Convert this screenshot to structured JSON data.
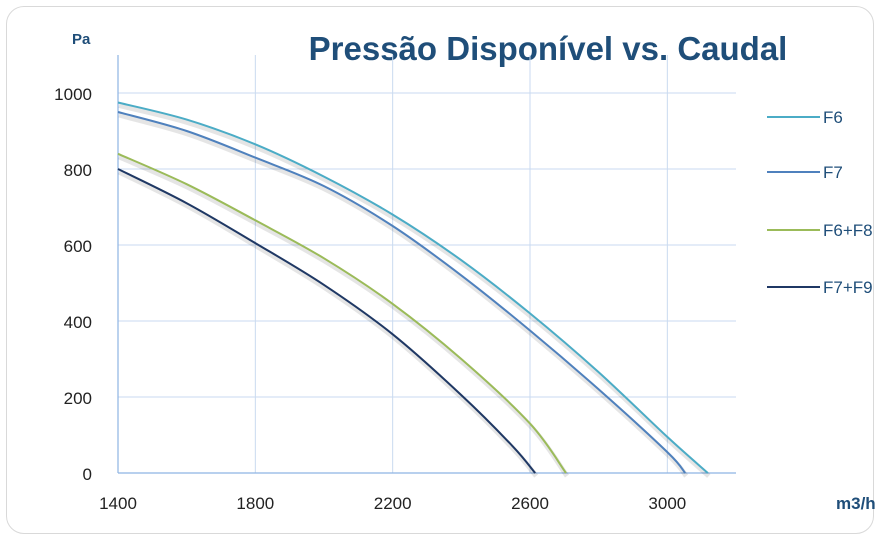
{
  "chart_data": {
    "type": "line",
    "title": "Pressão Disponível vs. Caudal",
    "ylabel": "Pa",
    "xlabel": "m3/h",
    "xlim": [
      1400,
      3200
    ],
    "ylim": [
      0,
      1100
    ],
    "x_ticks": [
      "1400",
      "1800",
      "2200",
      "2600",
      "3000"
    ],
    "y_ticks": [
      "0",
      "200",
      "400",
      "600",
      "800",
      "1000"
    ],
    "grid": true,
    "legend_position": "right",
    "series": [
      {
        "name": "F6",
        "color": "#4bacc6",
        "points": [
          [
            1400,
            975
          ],
          [
            1600,
            930
          ],
          [
            1800,
            865
          ],
          [
            2000,
            780
          ],
          [
            2200,
            680
          ],
          [
            2400,
            560
          ],
          [
            2600,
            420
          ],
          [
            2800,
            265
          ],
          [
            3000,
            95
          ],
          [
            3118,
            0
          ]
        ]
      },
      {
        "name": "F7",
        "color": "#4f81bd",
        "points": [
          [
            1400,
            950
          ],
          [
            1600,
            900
          ],
          [
            1800,
            830
          ],
          [
            2000,
            755
          ],
          [
            2200,
            650
          ],
          [
            2400,
            520
          ],
          [
            2600,
            375
          ],
          [
            2800,
            220
          ],
          [
            3000,
            55
          ],
          [
            3052,
            0
          ]
        ]
      },
      {
        "name": "F6+F8",
        "color": "#9bbb59",
        "points": [
          [
            1400,
            840
          ],
          [
            1600,
            760
          ],
          [
            1800,
            665
          ],
          [
            2000,
            565
          ],
          [
            2200,
            445
          ],
          [
            2400,
            300
          ],
          [
            2600,
            130
          ],
          [
            2705,
            0
          ]
        ]
      },
      {
        "name": "F7+F9",
        "color": "#1f3864",
        "points": [
          [
            1400,
            800
          ],
          [
            1600,
            710
          ],
          [
            1800,
            605
          ],
          [
            2000,
            495
          ],
          [
            2200,
            365
          ],
          [
            2400,
            205
          ],
          [
            2550,
            70
          ],
          [
            2615,
            0
          ]
        ]
      }
    ]
  }
}
